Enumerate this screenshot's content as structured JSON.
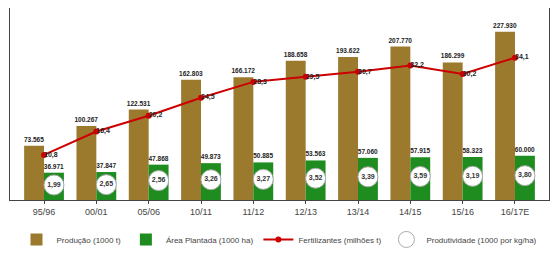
{
  "chart_data": {
    "type": "bar",
    "categories": [
      "95/96",
      "00/01",
      "05/06",
      "10/11",
      "11/12",
      "12/13",
      "13/14",
      "14/15",
      "15/16",
      "16/17E"
    ],
    "series": [
      {
        "name": "Produção (1000 t)",
        "type": "bar",
        "color": "#9b7a2e",
        "values": [
          73565,
          100267,
          122531,
          162803,
          166172,
          188658,
          193622,
          207770,
          186299,
          227930
        ],
        "value_labels": [
          "73.565",
          "100.267",
          "122.531",
          "162.803",
          "166.172",
          "188.658",
          "193.622",
          "207.770",
          "186.299",
          "227.930"
        ]
      },
      {
        "name": "Área Plantada (1000 ha)",
        "type": "bar",
        "color": "#1e8c1e",
        "values": [
          36971,
          37847,
          47868,
          49873,
          50885,
          53563,
          57060,
          57915,
          58323,
          60000
        ],
        "value_labels": [
          "36.971",
          "37.847",
          "47.868",
          "49.873",
          "50.885",
          "53.563",
          "57.060",
          "57.915",
          "58.323",
          "60.000"
        ]
      },
      {
        "name": "Fertilizantes (milhões t)",
        "type": "line",
        "axis": "y2",
        "color": "#cc0000",
        "marker": "circle",
        "values": [
          10.8,
          16.4,
          20.2,
          24.5,
          28.3,
          29.5,
          30.7,
          32.2,
          30.2,
          34.1
        ],
        "value_labels": [
          "10,8",
          "16,4",
          "20,2",
          "24,5",
          "28,3",
          "29,5",
          "30,7",
          "32,2",
          "30,2",
          "34,1"
        ]
      },
      {
        "name": "Produtividade (1000 por kg/ha)",
        "type": "label",
        "color": "#ffffff",
        "marker": "circle",
        "values": [
          1.99,
          2.65,
          2.56,
          3.26,
          3.27,
          3.52,
          3.39,
          3.59,
          3.19,
          3.8
        ],
        "value_labels": [
          "1,99",
          "2,65",
          "2,56",
          "3,26",
          "3,27",
          "3,52",
          "3,39",
          "3,59",
          "3,19",
          "3,80"
        ]
      }
    ],
    "ylim": [
      0,
      260000
    ],
    "y2lim": [
      0,
      46
    ],
    "data_labels": true,
    "tick_labels": "x",
    "grid": false,
    "legend": "bottom"
  }
}
